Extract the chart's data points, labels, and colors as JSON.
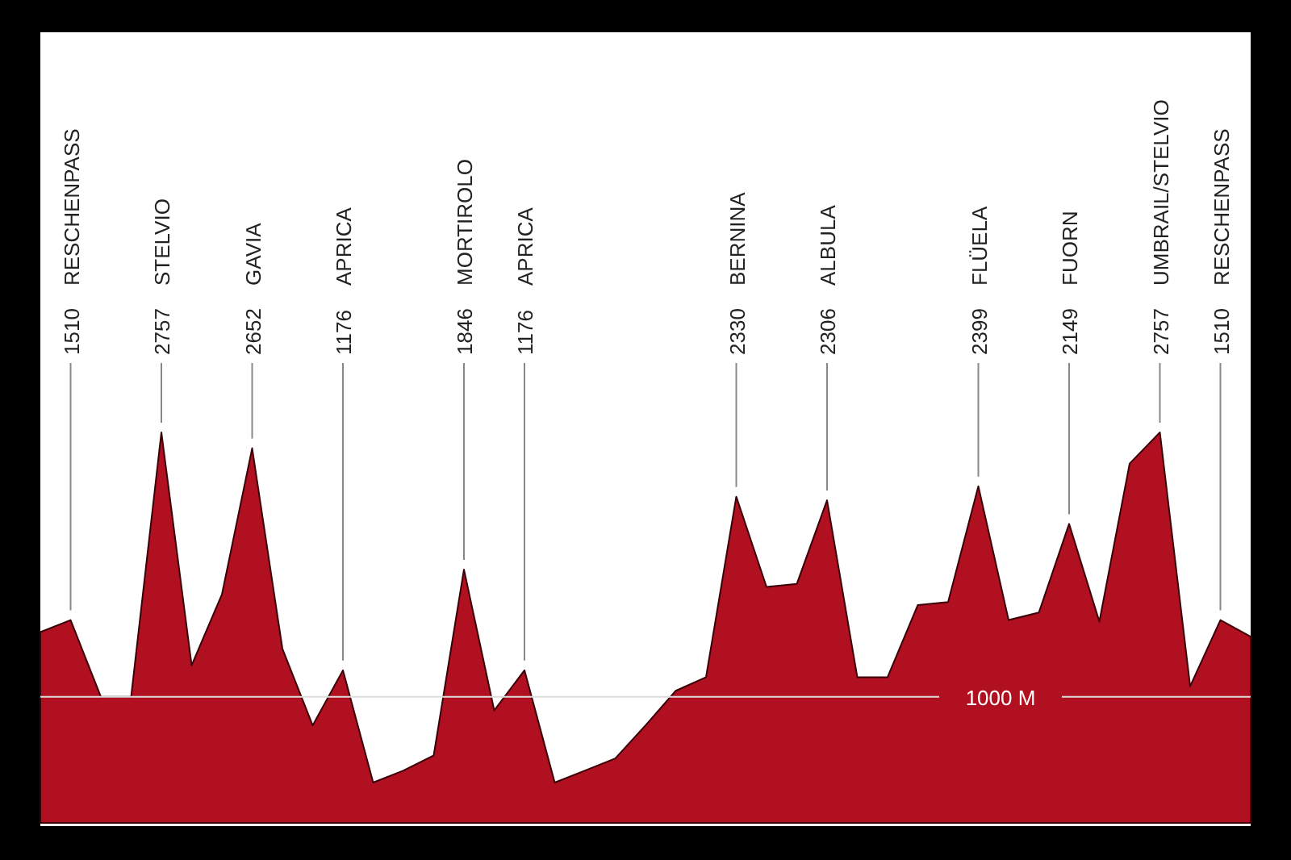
{
  "chart_data": {
    "type": "area",
    "categories": [
      null,
      "RESCHENPASS",
      null,
      null,
      "STELVIO",
      null,
      null,
      "GAVIA",
      null,
      null,
      "APRICA",
      null,
      null,
      null,
      "MORTIROLO",
      null,
      "APRICA",
      null,
      null,
      null,
      null,
      null,
      null,
      "BERNINA",
      null,
      null,
      "ALBULA",
      null,
      null,
      null,
      null,
      "FLÜELA",
      null,
      null,
      "FUORN",
      null,
      null,
      "UMBRAIL/STELVIO",
      null,
      "RESCHENPASS",
      null
    ],
    "series": [
      {
        "color": "#b01020",
        "values": [
          1430,
          1510,
          1000,
          1000,
          2757,
          1210,
          1680,
          2652,
          1320,
          810,
          1176,
          430,
          510,
          610,
          1846,
          910,
          1176,
          430,
          510,
          590,
          810,
          1040,
          1130,
          2330,
          1730,
          1750,
          2306,
          1130,
          1130,
          1610,
          1630,
          2399,
          1510,
          1560,
          2149,
          1500,
          2550,
          2757,
          1070,
          1510,
          1400
        ],
        "value_labels": [
          null,
          "1510",
          null,
          null,
          "2757",
          null,
          null,
          "2652",
          null,
          null,
          "1176",
          null,
          null,
          null,
          "1846",
          null,
          "1176",
          null,
          null,
          null,
          null,
          null,
          null,
          "2330",
          null,
          null,
          "2306",
          null,
          null,
          null,
          null,
          "2399",
          null,
          null,
          "2149",
          null,
          null,
          "2757",
          null,
          "1510",
          null
        ]
      }
    ],
    "ref_lines": [
      {
        "axis": "y",
        "value": 1000,
        "label": "1000 M",
        "color": "#dddddd"
      }
    ]
  }
}
